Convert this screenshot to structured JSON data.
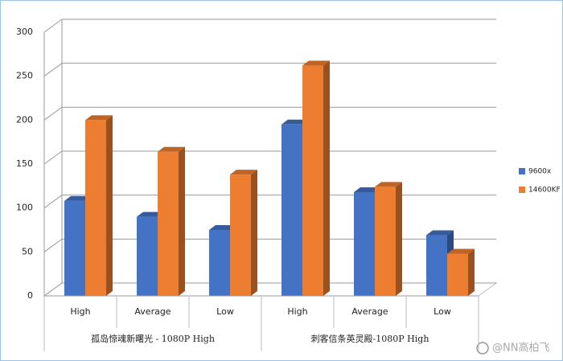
{
  "chart_data": {
    "type": "bar3d",
    "categories": [
      "High",
      "Average",
      "Low",
      "High",
      "Average",
      "Low"
    ],
    "groups": [
      {
        "label": "孤岛惊魂新曙光 - 1080P High",
        "span": 3
      },
      {
        "label": "刺客信条英灵殿-1080P High",
        "span": 3
      }
    ],
    "series": [
      {
        "name": "9600x",
        "color": "#4472c4",
        "values": [
          108,
          90,
          75,
          195,
          118,
          69
        ]
      },
      {
        "name": "14600KF",
        "color": "#ed7d31",
        "values": [
          200,
          164,
          138,
          262,
          124,
          48
        ]
      }
    ],
    "ylim": [
      0,
      300
    ],
    "yticks": [
      0,
      50,
      100,
      150,
      200,
      250,
      300
    ],
    "grid": true,
    "legend": "right",
    "watermark": "@NN高柏飞"
  }
}
